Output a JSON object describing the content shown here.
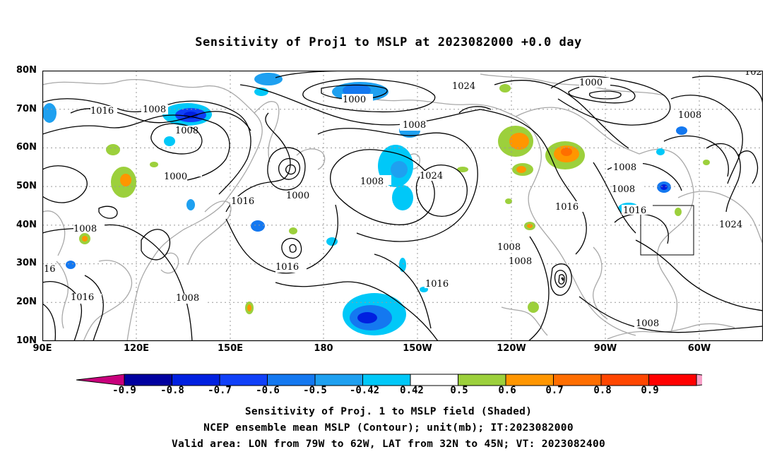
{
  "title": "Sensitivity of Proj1 to MSLP at 2023082000 +0.0 day",
  "latitude_labels": [
    "80N",
    "70N",
    "60N",
    "50N",
    "40N",
    "30N",
    "20N",
    "10N"
  ],
  "longitude_labels": [
    "90E",
    "120E",
    "150E",
    "180",
    "150W",
    "120W",
    "90W",
    "60W"
  ],
  "contour_labels": [
    "1008",
    "1016",
    "1008",
    "1000",
    "1000",
    "1008",
    "1000",
    "1016",
    "1008",
    "1024",
    "1024",
    "1008",
    "1016",
    "1016",
    "1008",
    "1016",
    "1008",
    "1024",
    "1008",
    "1016",
    "16",
    "1008",
    "1008",
    "1016",
    "1008",
    "1008",
    "1008",
    "1000",
    "102"
  ],
  "colorbar": {
    "tick_labels": [
      "-0.9",
      "-0.8",
      "-0.7",
      "-0.6",
      "-0.5",
      "-0.42",
      "0.42",
      "0.5",
      "0.6",
      "0.7",
      "0.8",
      "0.9"
    ],
    "colors": [
      "#c8007c",
      "#0000a0",
      "#0020e0",
      "#1040f8",
      "#1478f0",
      "#1ea0f0",
      "#00c8f8",
      "#ffffff",
      "#9cd03c",
      "#ff9600",
      "#ff6e00",
      "#ff4600",
      "#ff0000",
      "#f8a0c8"
    ]
  },
  "captions": [
    "Sensitivity of Proj. 1 to MSLP field (Shaded)",
    "NCEP ensemble mean MSLP (Contour); unit(mb); IT:2023082000",
    "Valid area: LON from 79W to 62W, LAT from 32N to 45N; VT: 2023082400"
  ]
}
